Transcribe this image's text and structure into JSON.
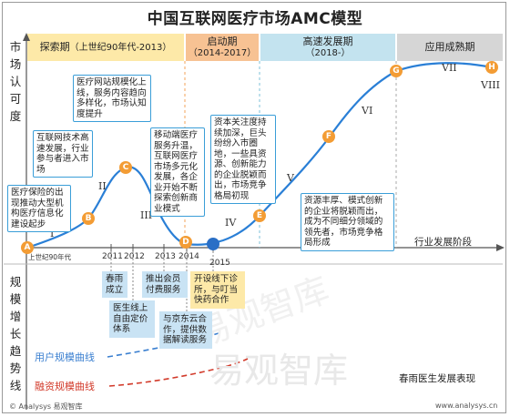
{
  "title": "中国互联网医疗市场AMC模型",
  "y_label_top": [
    "市",
    "场",
    "认",
    "可",
    "度"
  ],
  "y_label_bottom": [
    "规",
    "模",
    "增",
    "长",
    "趋",
    "势",
    "线"
  ],
  "phases": [
    {
      "name": "探索期",
      "sub": "（上世纪90年代-2013）",
      "color": "#fde9a8"
    },
    {
      "name": "启动期",
      "sub": "（2014-2017）",
      "color": "#f7c293"
    },
    {
      "name": "高速发展期",
      "sub": "（2018-）",
      "color": "#c3e3ef"
    },
    {
      "name": "应用成熟期",
      "sub": "",
      "color": "#d6d6d6"
    }
  ],
  "points": [
    {
      "label": "A",
      "color": "#f39c34"
    },
    {
      "label": "B",
      "color": "#f39c34"
    },
    {
      "label": "C",
      "color": "#f39c34"
    },
    {
      "label": "D",
      "color": "#f39c34"
    },
    {
      "label": "E",
      "color": "#f39c34"
    },
    {
      "label": "F",
      "color": "#f39c34"
    },
    {
      "label": "G",
      "color": "#f39c34"
    },
    {
      "label": "H",
      "color": "#f39c34"
    }
  ],
  "roman": [
    "I",
    "II",
    "III",
    "IV",
    "V",
    "VI",
    "VII",
    "VIII"
  ],
  "notes": {
    "a": "医疗保险的出现推动大型机构医疗信息化建设起步",
    "b": "互联网技术高速发展，行业参与者进入市场",
    "c": "医疗网站规模化上线，服务内容趋向多样化，市场认知度提升",
    "d": "移动端医疗服务升温，互联网医疗市场多元化发展，各企业开始不断探索创新商业模式",
    "e": "资本关注度持续加深，巨头纷纷入市圈地，一些具资源、创新能力的企业脱颖而出，市场竞争格局初现",
    "f": "资源丰厚、模式创新的企业将脱颖而出，成为不同细分领域的领先者，市场竞争格局形成"
  },
  "stage_label": "行业发展阶段",
  "origin_label": "上世纪90年代",
  "years": [
    "2011",
    "2012",
    "2013",
    "2014",
    "2015"
  ],
  "events": [
    {
      "text": "春雨成立",
      "style": "blue"
    },
    {
      "text": "医生线上自由定价体系",
      "style": "blue"
    },
    {
      "text": "推出会员付费服务",
      "style": "blue"
    },
    {
      "text": "与京东云合作，提供数据解读服务",
      "style": "blue"
    },
    {
      "text": "开设线下诊所，与叮当快药合作",
      "style": "yellow"
    }
  ],
  "legend": {
    "users": "用户规模曲线",
    "funding": "融资规模曲线",
    "users_color": "#3a7fd0",
    "funding_color": "#d23a2a"
  },
  "bottom_label": "春雨医生发展表现",
  "watermark": "易观智库",
  "footer_left": "© Analysys 易观智库",
  "footer_right": "www.analysys.cn"
}
